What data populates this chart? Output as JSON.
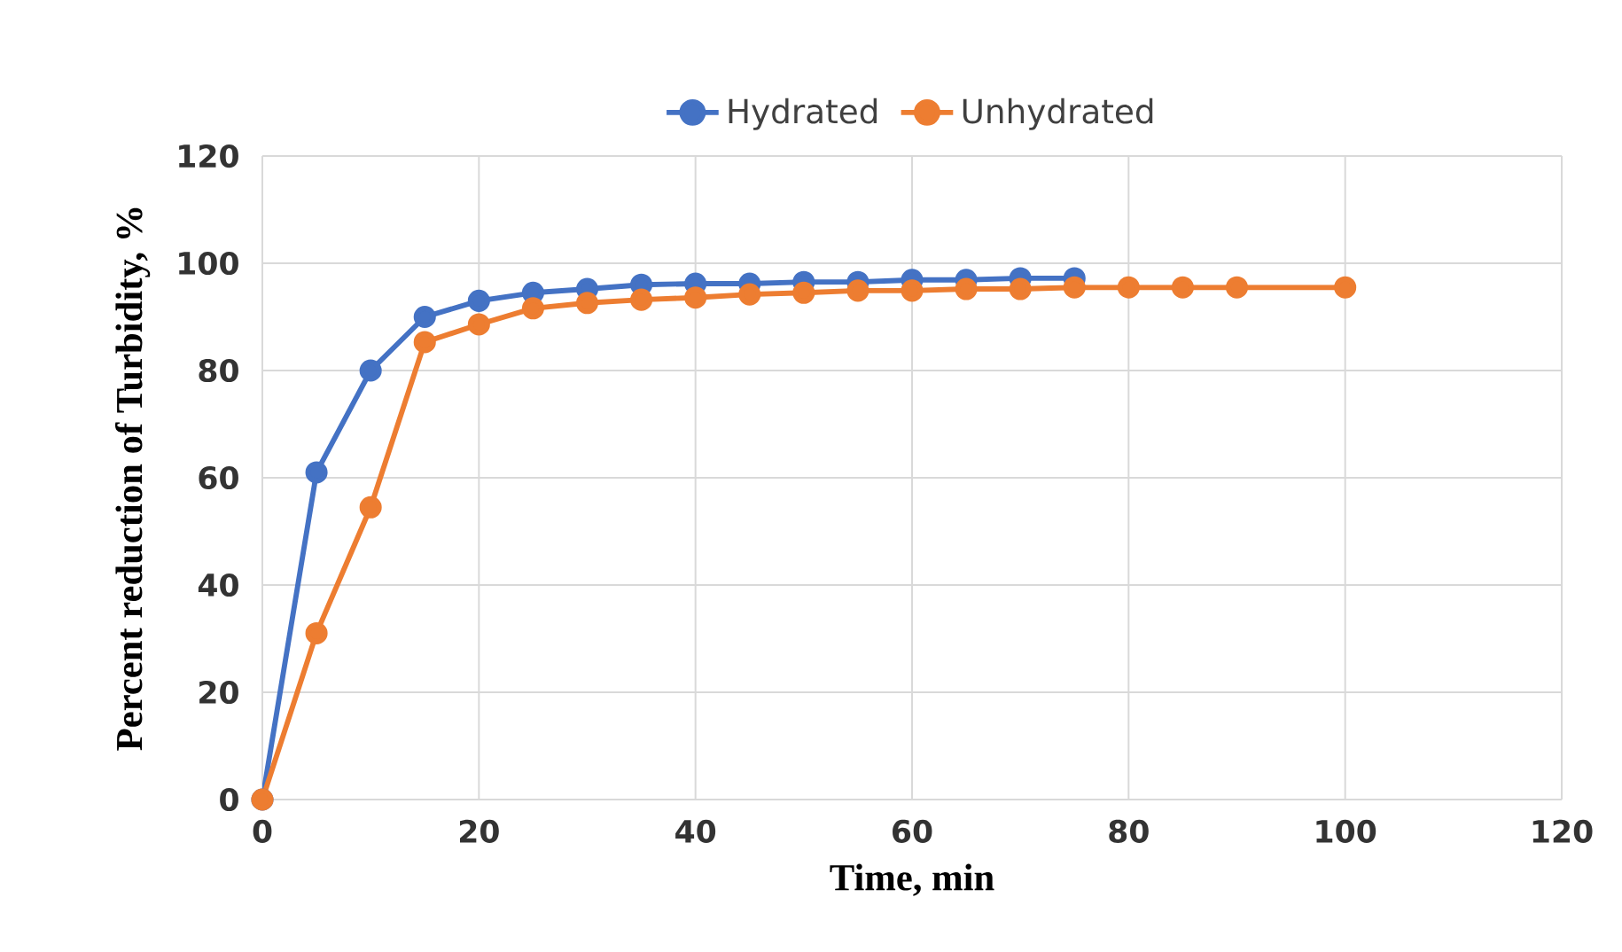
{
  "chart_data": {
    "type": "line",
    "xlabel": "Time, min",
    "ylabel": "Percent reduction of Turbidity, %",
    "xlim": [
      0,
      120
    ],
    "ylim": [
      0,
      120
    ],
    "xticks": [
      0,
      20,
      40,
      60,
      80,
      100,
      120
    ],
    "yticks": [
      0,
      20,
      40,
      60,
      80,
      100,
      120
    ],
    "grid": true,
    "legend": "top",
    "marker": "circle",
    "line_style": "solid",
    "series": [
      {
        "name": "Hydrated",
        "color": "#4472c4",
        "x": [
          0,
          5,
          10,
          15,
          20,
          25,
          30,
          35,
          40,
          45,
          50,
          55,
          60,
          65,
          70,
          75
        ],
        "values": [
          0,
          61,
          80,
          90,
          93,
          94.5,
          95.2,
          96,
          96.2,
          96.2,
          96.5,
          96.5,
          96.9,
          96.9,
          97.2,
          97.2
        ]
      },
      {
        "name": "Unhydrated",
        "color": "#ed7d31",
        "x": [
          0,
          5,
          10,
          15,
          20,
          25,
          30,
          35,
          40,
          45,
          50,
          55,
          60,
          65,
          70,
          75,
          80,
          85,
          90,
          100
        ],
        "values": [
          0,
          31,
          54.5,
          85.3,
          88.6,
          91.6,
          92.6,
          93.2,
          93.6,
          94.2,
          94.5,
          94.9,
          94.9,
          95.2,
          95.2,
          95.5,
          95.5,
          95.5,
          95.5,
          95.5
        ]
      }
    ]
  }
}
